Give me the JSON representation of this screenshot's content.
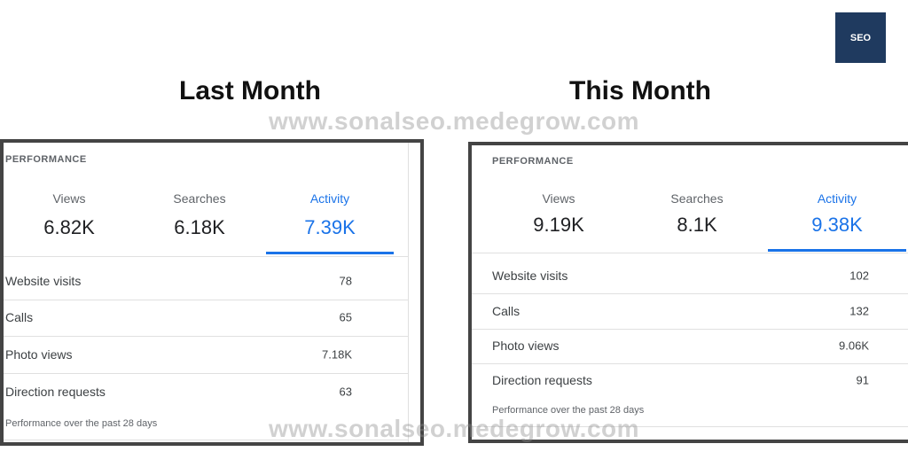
{
  "logo": "SEO",
  "watermark": "www.sonalseo.medegrow.com",
  "panels": [
    {
      "heading": "Last Month",
      "section": "PERFORMANCE",
      "tabs": [
        {
          "label": "Views",
          "value": "6.82K"
        },
        {
          "label": "Searches",
          "value": "6.18K"
        },
        {
          "label": "Activity",
          "value": "7.39K"
        }
      ],
      "rows": [
        {
          "label": "Website visits",
          "value": "78"
        },
        {
          "label": "Calls",
          "value": "65"
        },
        {
          "label": "Photo views",
          "value": "7.18K"
        },
        {
          "label": "Direction requests",
          "value": "63"
        }
      ],
      "footer": "Performance over the past 28 days"
    },
    {
      "heading": "This Month",
      "section": "PERFORMANCE",
      "tabs": [
        {
          "label": "Views",
          "value": "9.19K"
        },
        {
          "label": "Searches",
          "value": "8.1K"
        },
        {
          "label": "Activity",
          "value": "9.38K"
        }
      ],
      "rows": [
        {
          "label": "Website visits",
          "value": "102"
        },
        {
          "label": "Calls",
          "value": "132"
        },
        {
          "label": "Photo views",
          "value": "9.06K"
        },
        {
          "label": "Direction requests",
          "value": "91"
        }
      ],
      "footer": "Performance over the past 28 days"
    }
  ]
}
